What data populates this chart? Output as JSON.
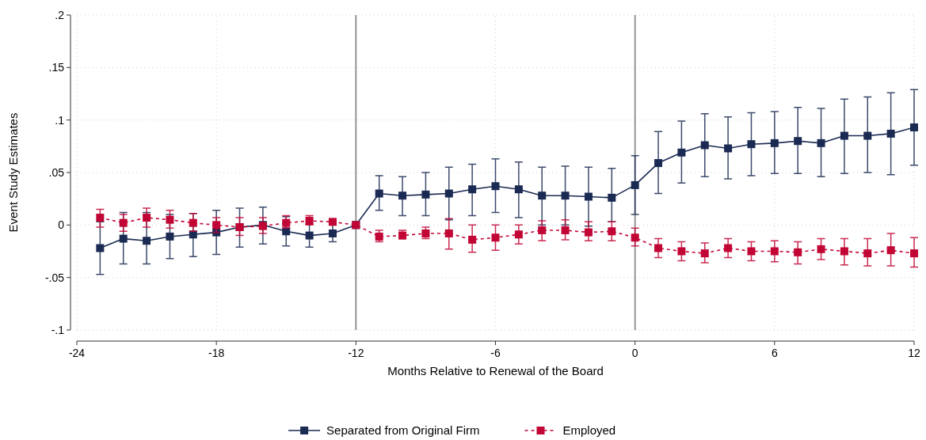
{
  "chart_data": {
    "type": "line",
    "xlabel": "Months Relative to Renewal of the Board",
    "ylabel": "Event Study Estimates",
    "x": [
      -23,
      -22,
      -21,
      -20,
      -19,
      -18,
      -17,
      -16,
      -15,
      -14,
      -13,
      -12,
      -11,
      -10,
      -9,
      -8,
      -7,
      -6,
      -5,
      -4,
      -3,
      -2,
      -1,
      0,
      1,
      2,
      3,
      4,
      5,
      6,
      7,
      8,
      9,
      10,
      11,
      12
    ],
    "xlim": [
      -24,
      12
    ],
    "xticks": [
      -24,
      -18,
      -12,
      -6,
      0,
      6,
      12
    ],
    "ylim": [
      -0.1,
      0.2
    ],
    "yticks": [
      {
        "value": -0.1,
        "label": "-.1"
      },
      {
        "value": -0.05,
        "label": "-.05"
      },
      {
        "value": 0,
        "label": "0"
      },
      {
        "value": 0.05,
        "label": ".05"
      },
      {
        "value": 0.1,
        "label": ".1"
      },
      {
        "value": 0.15,
        "label": ".15"
      },
      {
        "value": 0.2,
        "label": ".2"
      }
    ],
    "grid": true,
    "legend": "bottom",
    "marker": "square",
    "ref_lines": [
      {
        "axis": "x",
        "value": -12,
        "color": "#8c8c8c"
      },
      {
        "axis": "x",
        "value": 0,
        "color": "#8c8c8c"
      }
    ],
    "series": [
      {
        "name": "Separated from Original Firm",
        "color": "#1a2a52",
        "line_style": "solid",
        "values": [
          -0.022,
          -0.013,
          -0.015,
          -0.011,
          -0.009,
          -0.007,
          -0.002,
          0,
          -0.006,
          -0.01,
          -0.008,
          0,
          0.03,
          0.028,
          0.029,
          0.03,
          0.034,
          0.037,
          0.034,
          0.028,
          0.028,
          0.027,
          0.026,
          0.038,
          0.059,
          0.069,
          0.076,
          0.073,
          0.077,
          0.078,
          0.08,
          0.078,
          0.085,
          0.085,
          0.087,
          0.093
        ],
        "errors": [
          [
            -0.047,
            0.003
          ],
          [
            -0.037,
            0.012
          ],
          [
            -0.037,
            0.012
          ],
          [
            -0.032,
            0.01
          ],
          [
            -0.03,
            0.011
          ],
          [
            -0.028,
            0.014
          ],
          [
            -0.021,
            0.016
          ],
          [
            -0.018,
            0.017
          ],
          [
            -0.02,
            0.008
          ],
          [
            -0.021,
            0.001
          ],
          [
            -0.016,
            0.001
          ],
          null,
          [
            0.014,
            0.047
          ],
          [
            0.009,
            0.046
          ],
          [
            0.009,
            0.05
          ],
          [
            0.005,
            0.055
          ],
          [
            0.009,
            0.058
          ],
          [
            0.012,
            0.063
          ],
          [
            0.007,
            0.06
          ],
          [
            0,
            0.055
          ],
          [
            0,
            0.056
          ],
          [
            -0.001,
            0.055
          ],
          [
            0.003,
            0.054
          ],
          [
            0.01,
            0.066
          ],
          [
            0.03,
            0.089
          ],
          [
            0.04,
            0.099
          ],
          [
            0.046,
            0.106
          ],
          [
            0.044,
            0.103
          ],
          [
            0.047,
            0.107
          ],
          [
            0.049,
            0.108
          ],
          [
            0.049,
            0.112
          ],
          [
            0.046,
            0.111
          ],
          [
            0.049,
            0.12
          ],
          [
            0.05,
            0.122
          ],
          [
            0.048,
            0.126
          ],
          [
            0.057,
            0.129
          ]
        ]
      },
      {
        "name": "Employed",
        "color": "#c10534",
        "line_style": "dashed",
        "values": [
          0.007,
          0.002,
          0.007,
          0.005,
          0.002,
          0,
          -0.002,
          -0.001,
          0.002,
          0.004,
          0.003,
          0,
          -0.011,
          -0.01,
          -0.008,
          -0.008,
          -0.014,
          -0.012,
          -0.009,
          -0.005,
          -0.005,
          -0.007,
          -0.006,
          -0.012,
          -0.022,
          -0.025,
          -0.027,
          -0.022,
          -0.025,
          -0.025,
          -0.026,
          -0.023,
          -0.025,
          -0.027,
          -0.024,
          -0.027
        ],
        "errors": [
          [
            -0.002,
            0.015
          ],
          [
            -0.006,
            0.01
          ],
          [
            -0.002,
            0.016
          ],
          [
            -0.003,
            0.014
          ],
          [
            -0.006,
            0.011
          ],
          [
            -0.007,
            0.007
          ],
          [
            -0.01,
            0.007
          ],
          [
            -0.008,
            0.007
          ],
          [
            -0.003,
            0.009
          ],
          [
            0,
            0.009
          ],
          [
            0,
            0.005
          ],
          null,
          [
            -0.016,
            -0.005
          ],
          [
            -0.013,
            -0.005
          ],
          [
            -0.013,
            -0.002
          ],
          [
            -0.023,
            0.006
          ],
          [
            -0.026,
            0
          ],
          [
            -0.024,
            0
          ],
          [
            -0.018,
            0
          ],
          [
            -0.015,
            0.004
          ],
          [
            -0.014,
            0.005
          ],
          [
            -0.015,
            0.003
          ],
          [
            -0.015,
            0.003
          ],
          [
            -0.02,
            -0.003
          ],
          [
            -0.031,
            -0.013
          ],
          [
            -0.034,
            -0.016
          ],
          [
            -0.036,
            -0.017
          ],
          [
            -0.031,
            -0.013
          ],
          [
            -0.034,
            -0.016
          ],
          [
            -0.035,
            -0.015
          ],
          [
            -0.037,
            -0.016
          ],
          [
            -0.033,
            -0.013
          ],
          [
            -0.038,
            -0.013
          ],
          [
            -0.039,
            -0.013
          ],
          [
            -0.039,
            -0.008
          ],
          [
            -0.04,
            -0.012
          ]
        ]
      }
    ]
  }
}
